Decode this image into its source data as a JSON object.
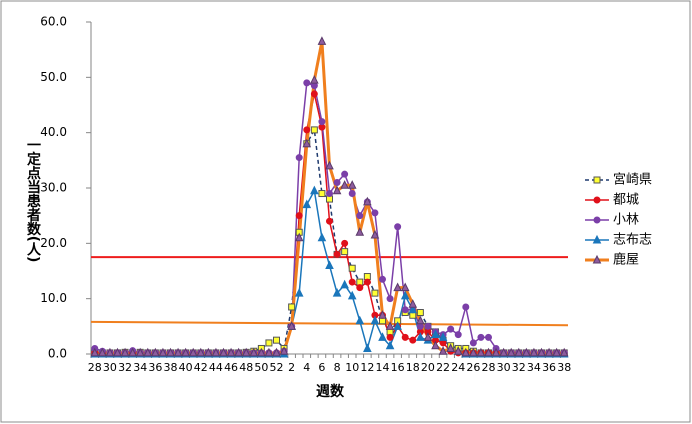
{
  "chart_data": {
    "type": "line",
    "y_label": "一定点当患者数(人)",
    "x_label": "週数",
    "categories": [
      "28",
      null,
      "30",
      null,
      "32",
      null,
      "34",
      null,
      "36",
      null,
      "38",
      null,
      "40",
      null,
      "42",
      null,
      "44",
      null,
      "46",
      null,
      "48",
      null,
      "50",
      null,
      "52",
      null,
      "2",
      null,
      "4",
      null,
      "6",
      null,
      "8",
      null,
      "10",
      null,
      "12",
      null,
      "14",
      null,
      "16",
      null,
      "18",
      null,
      "20",
      null,
      "22",
      null,
      "24",
      null,
      "26",
      null,
      "28",
      null,
      "30",
      null,
      "32",
      null,
      "34",
      null,
      "36",
      null,
      "38"
    ],
    "ylim": [
      0,
      60
    ],
    "yticks": [
      {
        "value": 0,
        "label": "0.0"
      },
      {
        "value": 10,
        "label": "10.0"
      },
      {
        "value": 20,
        "label": "20.0"
      },
      {
        "value": 30,
        "label": "30.0"
      },
      {
        "value": 40,
        "label": "40.0"
      },
      {
        "value": 50,
        "label": "50.0"
      },
      {
        "value": 60,
        "label": "60.0"
      }
    ],
    "reference_lines": [
      {
        "color": "#ee1c1c",
        "values": [
          17.5,
          17.5
        ]
      },
      {
        "color": "#f07f1e",
        "values": [
          5.8,
          5.2
        ]
      }
    ],
    "series": [
      {
        "name": "宮崎県",
        "color": "#1f3a6e",
        "marker": "square",
        "marker_color": "#ffff33",
        "dash": true,
        "width": 1.5,
        "values": [
          0.3,
          0.2,
          0.2,
          0.2,
          0.3,
          0.2,
          0.3,
          0.2,
          0.2,
          0.2,
          0.2,
          0.2,
          0.2,
          0.2,
          0.2,
          0.2,
          0.2,
          0.2,
          0.2,
          0.2,
          0.3,
          0.5,
          1,
          2,
          2.5,
          1,
          8.5,
          22,
          38,
          40.5,
          29,
          28,
          18,
          18.5,
          15.5,
          13,
          14,
          11,
          6,
          4,
          6,
          7.5,
          7,
          7.5,
          5,
          4,
          2.5,
          1.5,
          1,
          1,
          0.5,
          0.2,
          0.2,
          0.2,
          0.2,
          0.2,
          0.2,
          0.2,
          0.2,
          0.2,
          0.2,
          0.2,
          0.2
        ]
      },
      {
        "name": "都城",
        "color": "#e0101a",
        "marker": "circle",
        "marker_color": "#e0101a",
        "dash": false,
        "width": 1.5,
        "values": [
          0.2,
          0.2,
          0.2,
          0.2,
          0.2,
          0.2,
          0.2,
          0.2,
          0.2,
          0.2,
          0.2,
          0.2,
          0.2,
          0.2,
          0.2,
          0.2,
          0.2,
          0.2,
          0.2,
          0.2,
          0.2,
          0.2,
          0.2,
          0.2,
          0.2,
          0.5,
          5,
          25,
          40.5,
          47,
          41,
          24,
          18,
          20,
          13,
          12,
          13,
          7,
          7,
          3,
          5,
          3,
          2.5,
          4,
          4,
          2.5,
          2,
          0.5,
          0.2,
          0.2,
          0.2,
          0.2,
          0.2,
          0.2,
          0.2,
          0.2,
          0.2,
          0.2,
          0.2,
          0.2,
          0.2,
          0.2,
          0.2
        ]
      },
      {
        "name": "小林",
        "color": "#7b3fa8",
        "marker": "circle",
        "marker_color": "#7b3fa8",
        "dash": false,
        "width": 1.5,
        "values": [
          1,
          0.5,
          0.2,
          0.2,
          0.2,
          0.6,
          0.2,
          0.2,
          0.2,
          0.2,
          0.2,
          0.2,
          0.2,
          0.2,
          0.2,
          0.2,
          0.2,
          0.2,
          0.2,
          0.2,
          0.2,
          0.2,
          0.2,
          0.2,
          0.2,
          0.5,
          5,
          35.5,
          49,
          48.5,
          42,
          29,
          31,
          32.5,
          29,
          25,
          27.5,
          25.5,
          13.5,
          10,
          23,
          8,
          8,
          5,
          5,
          4,
          3.5,
          4.5,
          3.5,
          8.5,
          2,
          3,
          3,
          1,
          0.2,
          0.2,
          0.2,
          0.2,
          0.2,
          0.2,
          0.2,
          0.2,
          0.2
        ]
      },
      {
        "name": "志布志",
        "color": "#1a76bb",
        "marker": "triangle",
        "marker_color": "#1a76bb",
        "dash": false,
        "width": 1.5,
        "values": [
          0,
          0,
          0,
          0,
          0,
          0,
          0,
          0,
          0,
          0,
          0,
          0,
          0,
          0,
          0,
          0,
          0,
          0,
          0,
          0,
          0,
          0,
          0,
          0,
          0,
          0,
          5,
          11,
          27,
          29.5,
          21,
          16,
          11,
          12.5,
          10.5,
          6,
          1,
          6,
          3,
          1.5,
          5,
          10.5,
          8,
          3,
          2.5,
          3.5,
          3,
          1,
          0.5,
          0,
          0,
          0,
          0,
          0,
          0,
          0,
          0,
          0,
          0,
          0,
          0,
          0,
          0
        ]
      },
      {
        "name": "鹿屋",
        "color": "#f07f1e",
        "marker": "triangle",
        "marker_color": "#8e5c9e",
        "dash": false,
        "width": 3,
        "values": [
          0.2,
          0.2,
          0.2,
          0.2,
          0.2,
          0.2,
          0.2,
          0.2,
          0.2,
          0.2,
          0.2,
          0.2,
          0.2,
          0.2,
          0.2,
          0.2,
          0.2,
          0.2,
          0.2,
          0.2,
          0.2,
          0.2,
          0.2,
          0.2,
          0.2,
          0.5,
          5,
          21,
          38,
          49.5,
          56.5,
          34,
          29.5,
          30.5,
          30.5,
          22,
          27.5,
          21.5,
          7,
          5,
          12,
          12,
          9,
          6,
          3,
          1.5,
          0.5,
          1,
          0.5,
          0.2,
          0.2,
          0.2,
          0.2,
          0.2,
          0.2,
          0.2,
          0.2,
          0.2,
          0.2,
          0.2,
          0.2,
          0.2,
          0.2
        ]
      }
    ]
  }
}
